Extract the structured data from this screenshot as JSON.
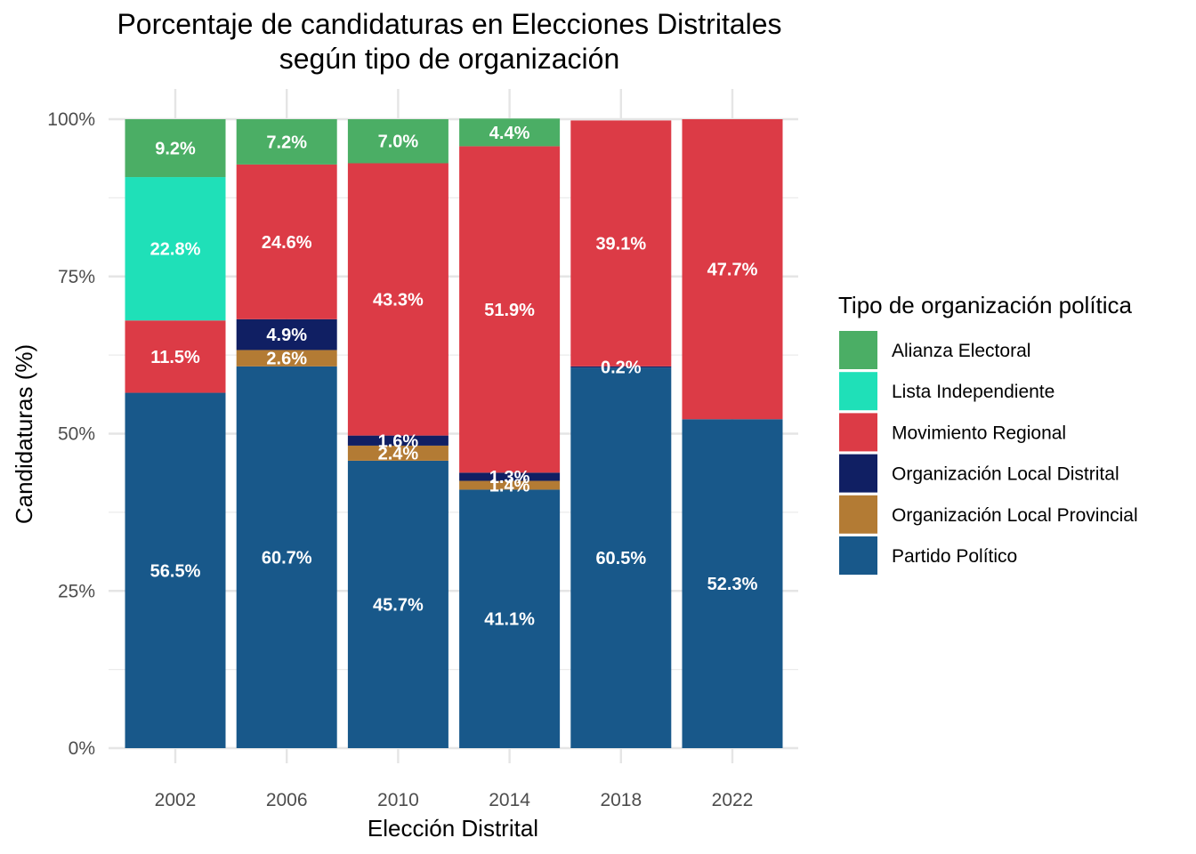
{
  "chart_data": {
    "type": "bar",
    "stacked": true,
    "title_lines": [
      "Porcentaje de candidaturas en Elecciones Distritales",
      "según tipo de organización"
    ],
    "xlabel": "Elección Distrital",
    "ylabel": "Candidaturas (%)",
    "ylim": [
      0,
      100
    ],
    "yticks": [
      0,
      25,
      50,
      75,
      100
    ],
    "ytick_labels": [
      "0%",
      "25%",
      "50%",
      "75%",
      "100%"
    ],
    "grid": true,
    "legend_position": "right",
    "legend_title": "Tipo de organización política",
    "categories": [
      "2002",
      "2006",
      "2010",
      "2014",
      "2018",
      "2022"
    ],
    "series": [
      {
        "name": "Partido Político",
        "color": "#18588A",
        "values": [
          56.5,
          60.7,
          45.7,
          41.1,
          60.5,
          52.3
        ],
        "labels": [
          "56.5%",
          "60.7%",
          "45.7%",
          "41.1%",
          "60.5%",
          "52.3%"
        ]
      },
      {
        "name": "Organización Local Provincial",
        "color": "#B37B34",
        "values": [
          0,
          2.6,
          2.4,
          1.4,
          0,
          0
        ],
        "labels": [
          "",
          "2.6%",
          "2.4%",
          "1.4%",
          "",
          ""
        ]
      },
      {
        "name": "Organización Local Distrital",
        "color": "#101F63",
        "values": [
          0,
          4.9,
          1.6,
          1.3,
          0.2,
          0
        ],
        "labels": [
          "",
          "4.9%",
          "1.6%",
          "1.3%",
          "0.2%",
          ""
        ]
      },
      {
        "name": "Movimiento Regional",
        "color": "#DC3B46",
        "values": [
          11.5,
          24.6,
          43.3,
          51.9,
          39.1,
          47.7
        ],
        "labels": [
          "11.5%",
          "24.6%",
          "43.3%",
          "51.9%",
          "39.1%",
          "47.7%"
        ]
      },
      {
        "name": "Lista Independiente",
        "color": "#1FE0B8",
        "values": [
          22.8,
          0,
          0,
          0,
          0,
          0
        ],
        "labels": [
          "22.8%",
          "",
          "",
          "",
          "",
          ""
        ]
      },
      {
        "name": "Alianza Electoral",
        "color": "#4BAE65",
        "values": [
          9.2,
          7.2,
          7.0,
          4.4,
          0,
          0
        ],
        "labels": [
          "9.2%",
          "7.2%",
          "7.0%",
          "4.4%",
          "",
          ""
        ]
      }
    ],
    "legend_order": [
      "Alianza Electoral",
      "Lista Independiente",
      "Movimiento Regional",
      "Organización Local Distrital",
      "Organización Local Provincial",
      "Partido Político"
    ]
  }
}
